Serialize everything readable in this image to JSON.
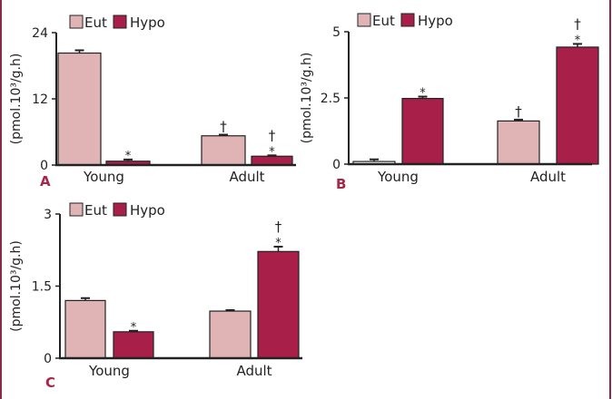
{
  "colors": {
    "eut": "#e0b4b4",
    "hypo": "#a8204a",
    "axis": "#222222",
    "letter": "#a8264a",
    "border": "#8a2a4a"
  },
  "chart_data": [
    {
      "type": "bar",
      "panel": "A",
      "ylabel": "(pmol.10³/g.h)",
      "ylim": [
        0,
        24
      ],
      "yticks": [
        "0",
        "12",
        "24"
      ],
      "ytick_values": [
        0,
        12,
        24
      ],
      "categories": [
        "Young",
        "Adult"
      ],
      "legend": [
        "Eut",
        "Hypo"
      ],
      "series": [
        {
          "name": "Eut",
          "values": [
            20.3,
            5.3
          ],
          "errors": [
            0.5,
            0.2
          ],
          "marks": [
            "",
            "†"
          ]
        },
        {
          "name": "Hypo",
          "values": [
            0.7,
            1.6
          ],
          "errors": [
            0.3,
            0.15
          ],
          "marks": [
            "*",
            "† *"
          ]
        }
      ]
    },
    {
      "type": "bar",
      "panel": "B",
      "ylabel": "(pmol.10³/g.h)",
      "ylim": [
        0,
        5
      ],
      "yticks": [
        "0",
        "2.5",
        "5"
      ],
      "ytick_values": [
        0,
        2.5,
        5
      ],
      "categories": [
        "Young",
        "Adult"
      ],
      "legend": [
        "Eut",
        "Hypo"
      ],
      "series": [
        {
          "name": "Eut",
          "values": [
            0.1,
            1.63
          ],
          "errors": [
            0.08,
            0.05
          ],
          "marks": [
            "",
            "†"
          ]
        },
        {
          "name": "Hypo",
          "values": [
            2.48,
            4.42
          ],
          "errors": [
            0.07,
            0.12
          ],
          "marks": [
            "*",
            "† *"
          ]
        }
      ]
    },
    {
      "type": "bar",
      "panel": "C",
      "ylabel": "(pmol.10³/g.h)",
      "ylim": [
        0,
        3
      ],
      "yticks": [
        "0",
        "1.5",
        "3"
      ],
      "ytick_values": [
        0,
        1.5,
        3
      ],
      "categories": [
        "Young",
        "Adult"
      ],
      "legend": [
        "Eut",
        "Hypo"
      ],
      "series": [
        {
          "name": "Eut",
          "values": [
            1.2,
            0.98
          ],
          "errors": [
            0.05,
            0.02
          ],
          "marks": [
            "",
            ""
          ]
        },
        {
          "name": "Hypo",
          "values": [
            0.55,
            2.22
          ],
          "errors": [
            0.02,
            0.1
          ],
          "marks": [
            "*",
            "† *"
          ]
        }
      ]
    }
  ]
}
